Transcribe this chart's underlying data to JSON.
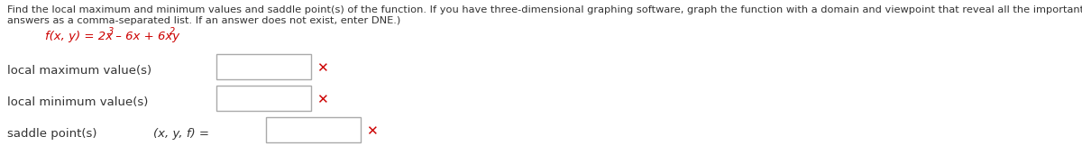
{
  "bg_color": "#ffffff",
  "header_line1": "Find the local maximum and minimum values and saddle point(s) of the function. If you have three-dimensional graphing software, graph the function with a domain and viewpoint that reveal all the important aspects of the function. (Enter your",
  "header_line2": "answers as a comma-separated list. If an answer does not exist, enter DNE.)",
  "func_prefix": "f(x, y) = 2x",
  "func_sup1": "3",
  "func_mid": " – 6x + 6xy",
  "func_sup2": "2",
  "row1_label": "local maximum value(s)",
  "row2_label": "local minimum value(s)",
  "row3_label": "saddle point(s)",
  "row3_sublabel": "(x, y, f) =",
  "header_fontsize": 8.2,
  "label_fontsize": 9.5,
  "func_fontsize": 9.5,
  "text_color": "#333333",
  "function_color": "#cc0000",
  "box_edgecolor": "#aaaaaa",
  "x_color": "#cc0000",
  "fig_width": 12.0,
  "fig_height": 1.72,
  "dpi": 100
}
